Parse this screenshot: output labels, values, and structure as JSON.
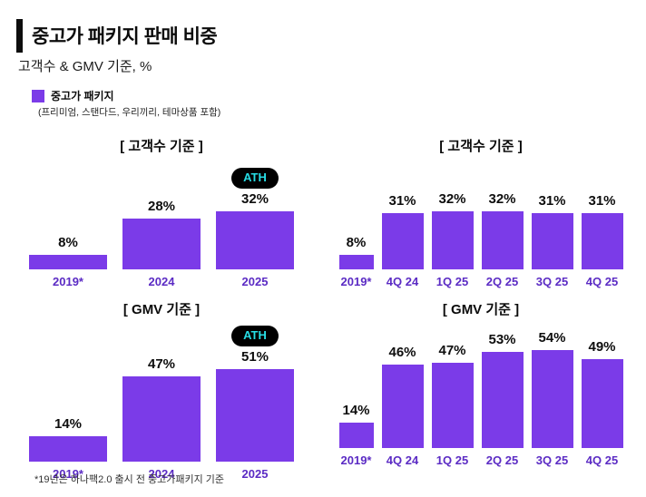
{
  "header": {
    "title": "중고가 패키지 판매 비중",
    "subtitle": "고객수 & GMV 기준, %"
  },
  "legend": {
    "label": "중고가 패키지",
    "note": "(프리미엄, 스탠다드, 우리끼리, 테마상품 포함)"
  },
  "ath_badge": {
    "label": "ATH",
    "bg": "#000000",
    "text_color": "#27DCE4"
  },
  "colors": {
    "bar": "#7B3BE8",
    "axis_label": "#5B2BC4",
    "value_label": "#0e0e0e"
  },
  "footnote": "*19년은 하나팩2.0 출시 전 중고가패키지 기준",
  "chart_data": [
    {
      "type": "bar",
      "title": "[ 고객수 기준 ]",
      "categories": [
        "2019*",
        "2024",
        "2025"
      ],
      "values": [
        8,
        28,
        32
      ],
      "value_suffix": "%",
      "ath_index": 2,
      "xlabel": "",
      "ylabel": "",
      "grid": false,
      "legend_position": "none"
    },
    {
      "type": "bar",
      "title": "[ 고객수 기준 ]",
      "categories": [
        "2019*",
        "4Q 24",
        "1Q 25",
        "2Q 25",
        "3Q 25",
        "4Q 25"
      ],
      "values": [
        8,
        31,
        32,
        32,
        31,
        31
      ],
      "value_suffix": "%",
      "ath_index": -1,
      "xlabel": "",
      "ylabel": "",
      "grid": false,
      "legend_position": "none"
    },
    {
      "type": "bar",
      "title": "[ GMV 기준 ]",
      "categories": [
        "2019*",
        "2024",
        "2025"
      ],
      "values": [
        14,
        47,
        51
      ],
      "value_suffix": "%",
      "ath_index": 2,
      "xlabel": "",
      "ylabel": "",
      "grid": false,
      "legend_position": "none"
    },
    {
      "type": "bar",
      "title": "[ GMV 기준 ]",
      "categories": [
        "2019*",
        "4Q 24",
        "1Q 25",
        "2Q 25",
        "3Q 25",
        "4Q 25"
      ],
      "values": [
        14,
        46,
        47,
        53,
        54,
        49
      ],
      "value_suffix": "%",
      "ath_index": -1,
      "xlabel": "",
      "ylabel": "",
      "grid": false,
      "legend_position": "none"
    }
  ]
}
